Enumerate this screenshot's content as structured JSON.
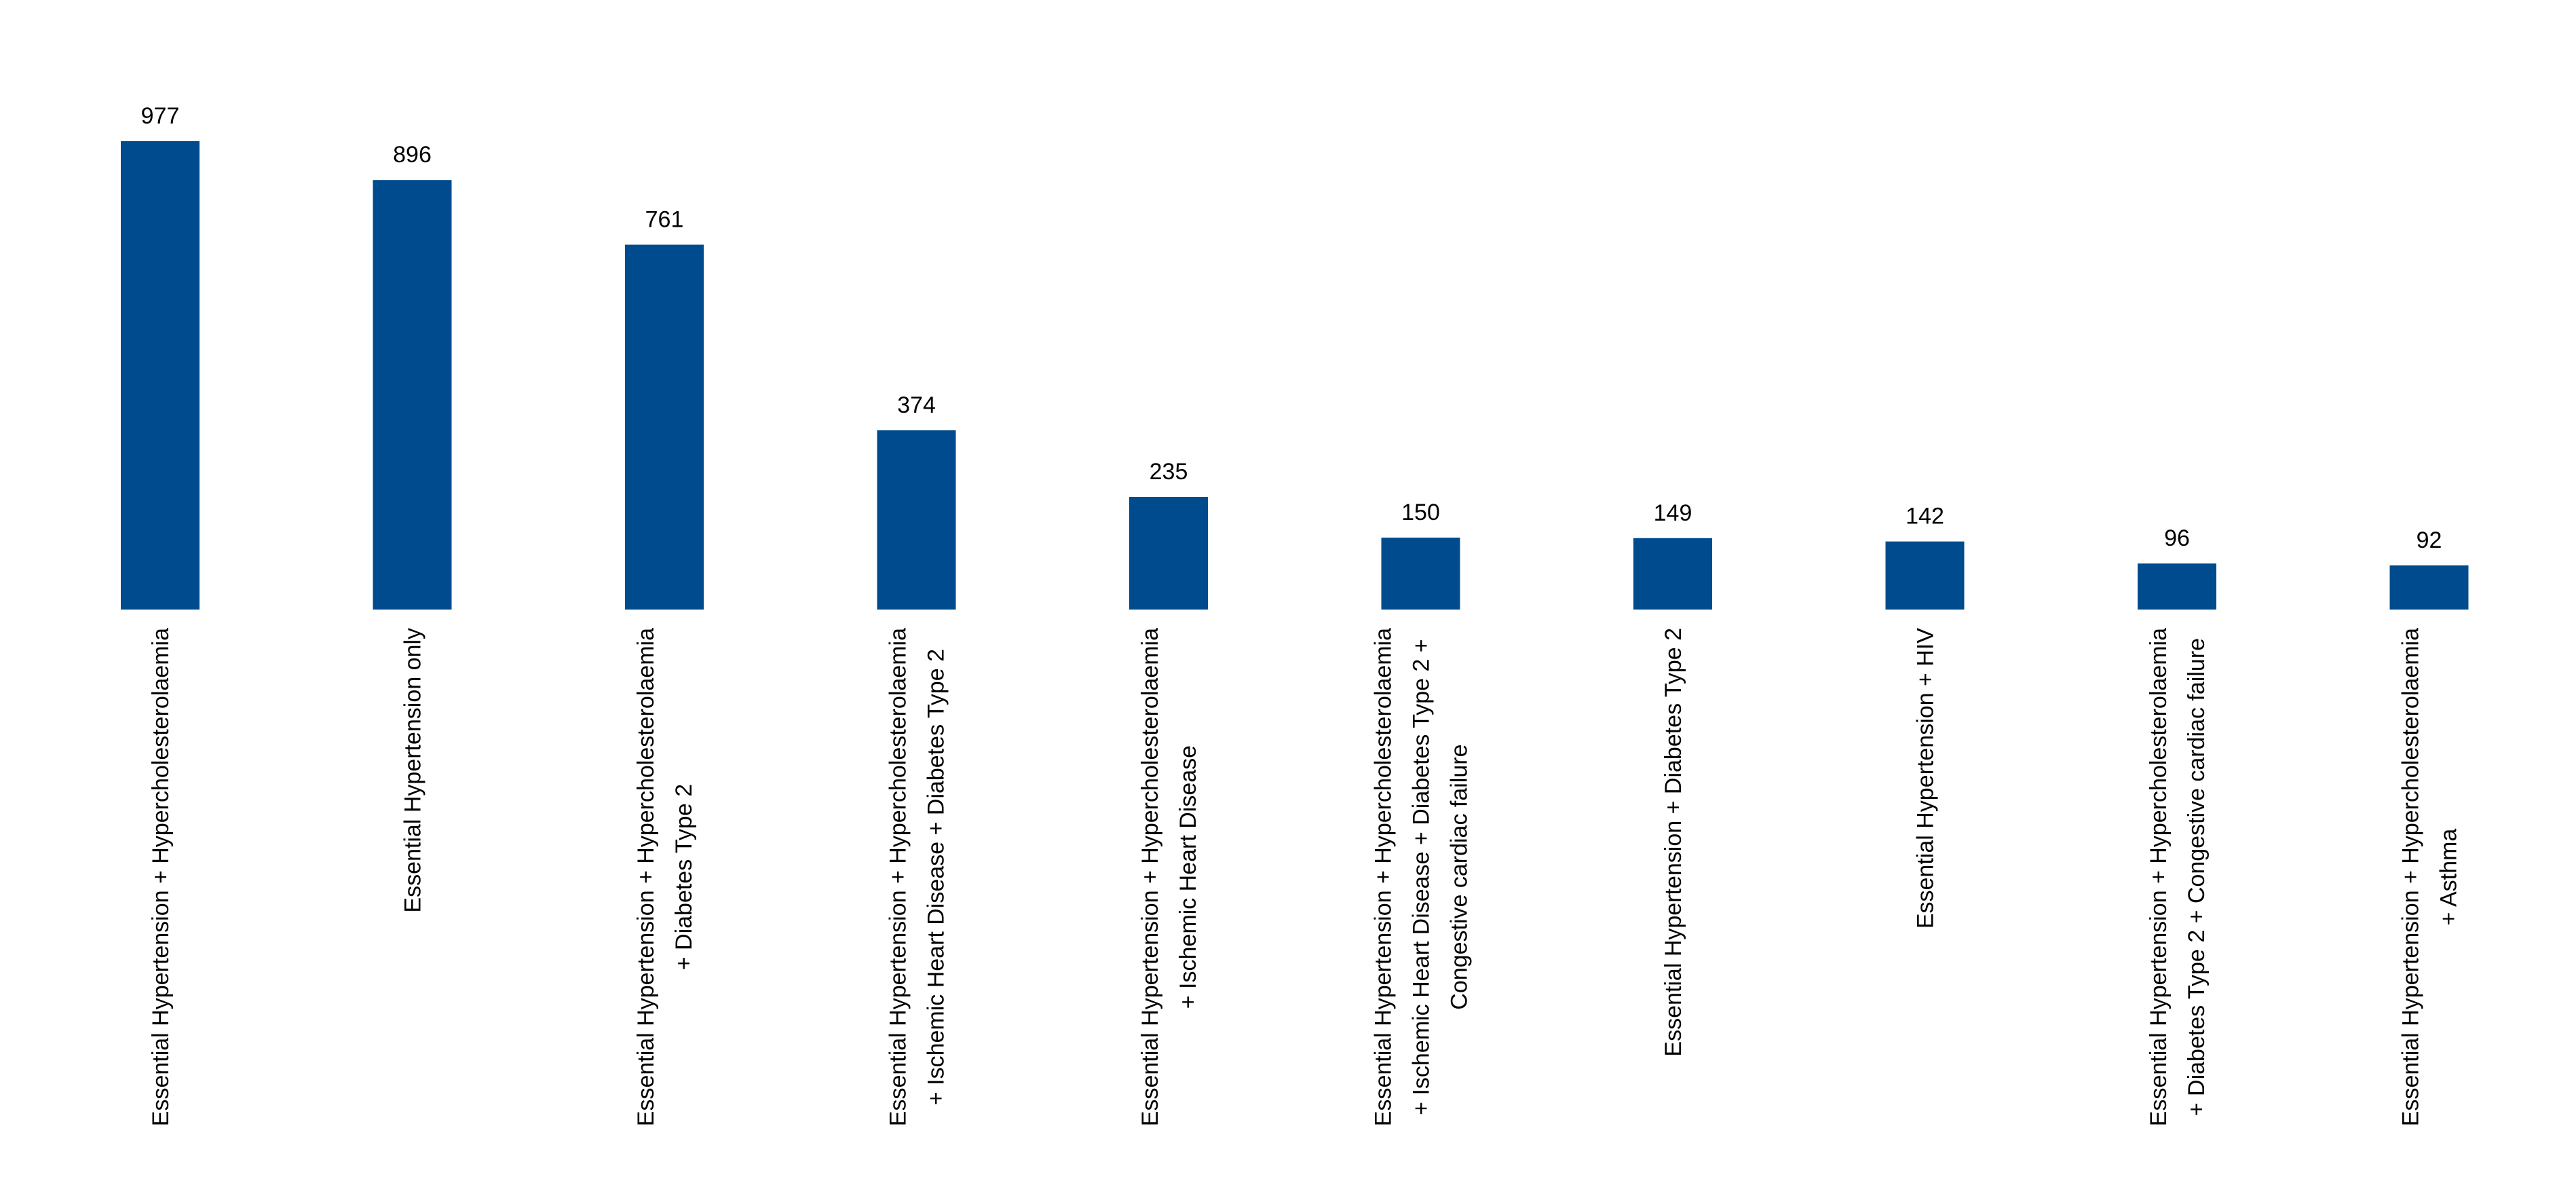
{
  "chart_data": {
    "type": "bar",
    "title": "",
    "xlabel": "",
    "ylabel": "",
    "ylim": [
      0,
      977
    ],
    "bar_color": "#004B8D",
    "grid": false,
    "legend": "none",
    "categories": [
      [
        "Essential Hypertension + Hypercholesterolaemia"
      ],
      [
        "Essential Hypertension only"
      ],
      [
        "Essential Hypertension + Hypercholesterolaemia",
        "+ Diabetes Type 2"
      ],
      [
        "Essential Hypertension + Hypercholesterolaemia",
        "+ Ischemic Heart Disease + Diabetes Type 2"
      ],
      [
        "Essential Hypertension + Hypercholesterolaemia",
        "+ Ischemic Heart Disease"
      ],
      [
        "Essential Hypertension + Hypercholesterolaemia",
        "+ Ischemic Heart Disease + Diabetes Type 2 +",
        "Congestive cardiac failure"
      ],
      [
        "Essential Hypertension + Diabetes Type 2"
      ],
      [
        "Essential Hypertension + HIV"
      ],
      [
        "Essential Hypertension + Hypercholesterolaemia",
        "+ Diabetes Type 2 + Congestive cardiac failure"
      ],
      [
        "Essential Hypertension + Hypercholesterolaemia",
        "+ Asthma"
      ]
    ],
    "values": [
      977,
      896,
      761,
      374,
      235,
      150,
      149,
      142,
      96,
      92
    ]
  }
}
